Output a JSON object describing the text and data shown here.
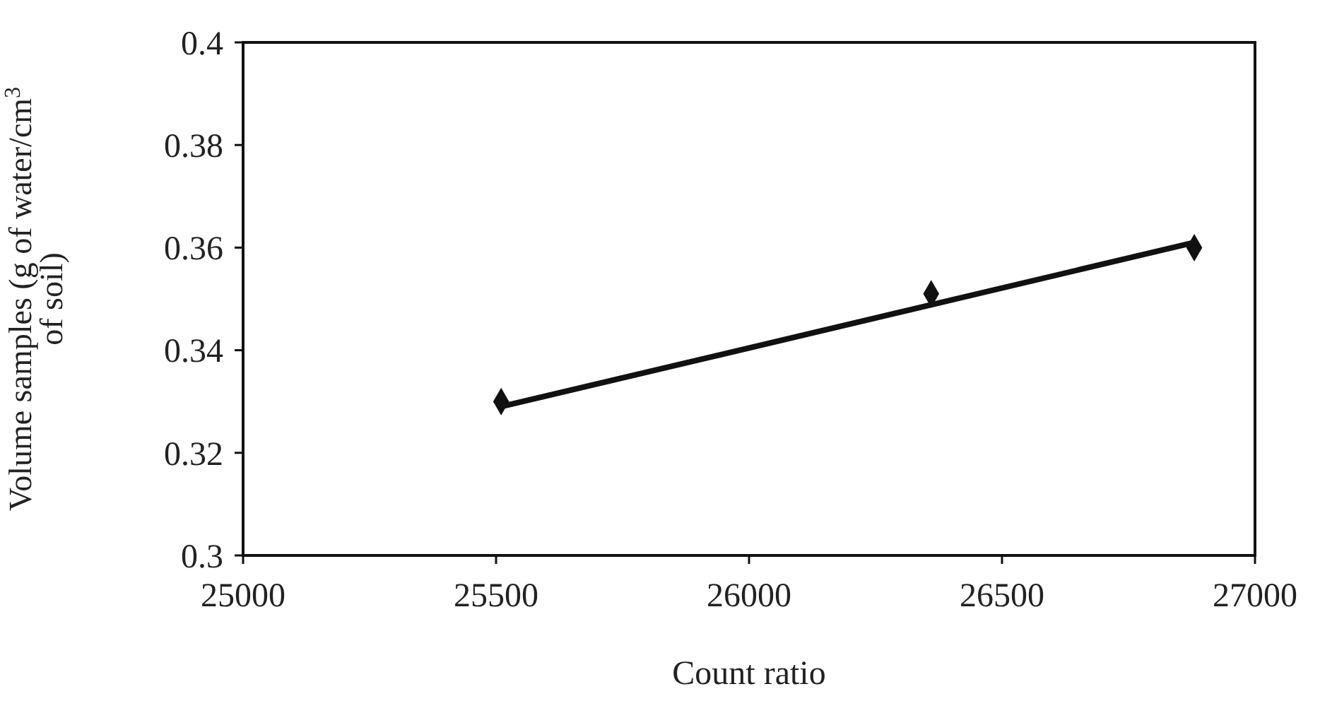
{
  "chart_data": {
    "type": "scatter",
    "xlabel": "Count ratio",
    "ylabel": "Volume samples (g of water/cm$^{3}$ of soil)",
    "xlim": [
      25000,
      27000
    ],
    "xticks": [
      25000,
      25500,
      26000,
      26500,
      27000
    ],
    "ylim": [
      0.3,
      0.4
    ],
    "yticks": [
      0.3,
      0.32,
      0.34,
      0.36,
      0.38,
      {
        "value": 0.4,
        "label": "0.4"
      }
    ],
    "grid": false,
    "marker": "diamond",
    "series": [
      {
        "color": "#111111",
        "x": [
          25510,
          26360,
          26880
        ],
        "values": [
          0.33,
          0.351,
          0.36
        ]
      },
      {
        "type": "line",
        "color": "#111111",
        "marker": "none",
        "line_style": "solid",
        "x": [
          25510,
          26880
        ],
        "values": [
          0.329,
          0.361
        ]
      }
    ]
  }
}
